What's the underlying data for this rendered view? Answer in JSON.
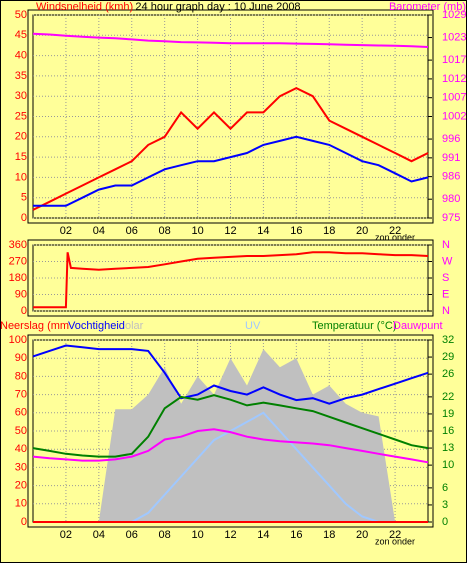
{
  "chart_data": [
    {
      "type": "line",
      "title": "24 hour graph day : 10 June 2008",
      "ylabel": "Windsnelheid (kmh)",
      "y2label": "Barometer (mb)",
      "ycolor": "#ff0000",
      "y2color": "#ff00ff",
      "annotation": "zon onder",
      "x": [
        0,
        1,
        2,
        3,
        4,
        5,
        6,
        7,
        8,
        9,
        10,
        11,
        12,
        13,
        14,
        15,
        16,
        17,
        18,
        19,
        20,
        21,
        22,
        23,
        24
      ],
      "xlim": [
        0,
        24
      ],
      "xticks": [
        {
          "value": 2,
          "label": "02"
        },
        {
          "value": 4,
          "label": "04"
        },
        {
          "value": 6,
          "label": "06"
        },
        {
          "value": 8,
          "label": "08"
        },
        {
          "value": 10,
          "label": "10"
        },
        {
          "value": 12,
          "label": "12"
        },
        {
          "value": 14,
          "label": "14"
        },
        {
          "value": 16,
          "label": "16"
        },
        {
          "value": 18,
          "label": "18"
        },
        {
          "value": 20,
          "label": "20"
        },
        {
          "value": 22,
          "label": "22"
        }
      ],
      "ylim": [
        0,
        50
      ],
      "yticks": [
        0,
        5,
        10,
        15,
        20,
        25,
        30,
        35,
        40,
        45,
        50
      ],
      "y2lim": [
        975,
        1029
      ],
      "y2ticks": [
        975,
        980,
        986,
        991,
        996,
        1002,
        1007,
        1012,
        1017,
        1023,
        1029
      ],
      "grid": true,
      "series": [
        {
          "color": "#ff0000",
          "values": [
            2,
            4,
            6,
            8,
            10,
            12,
            14,
            18,
            20,
            26,
            22,
            26,
            22,
            26,
            26,
            30,
            32,
            30,
            24,
            22,
            20,
            18,
            16,
            14,
            16
          ]
        },
        {
          "color": "#0000ff",
          "values": [
            3,
            3,
            3,
            5,
            7,
            8,
            8,
            10,
            12,
            13,
            14,
            14,
            15,
            16,
            18,
            19,
            20,
            19,
            18,
            16,
            14,
            13,
            11,
            9,
            10
          ]
        },
        {
          "color": "#ff00ff",
          "axis": "y2",
          "values": [
            1024,
            1023.8,
            1023.5,
            1023.2,
            1023,
            1022.8,
            1022.5,
            1022.2,
            1022,
            1021.8,
            1021.7,
            1021.6,
            1021.5,
            1021.5,
            1021.5,
            1021.5,
            1021.4,
            1021.3,
            1021.2,
            1021.1,
            1021,
            1020.9,
            1020.8,
            1020.7,
            1020.5
          ]
        }
      ]
    },
    {
      "type": "line",
      "ycolor": "#ff0000",
      "y2color": "#ff00ff",
      "x": [
        0,
        1,
        2,
        2.1,
        2.3,
        3,
        4,
        5,
        6,
        7,
        8,
        9,
        10,
        11,
        12,
        13,
        14,
        15,
        16,
        17,
        18,
        19,
        20,
        21,
        22,
        23,
        24
      ],
      "xlim": [
        0,
        24
      ],
      "ylim": [
        0,
        360
      ],
      "yticks": [
        0,
        90,
        180,
        270,
        360
      ],
      "y2lim": [
        0,
        360
      ],
      "y2ticks": [
        {
          "value": 0,
          "label": "N"
        },
        {
          "value": 90,
          "label": "E"
        },
        {
          "value": 180,
          "label": "S"
        },
        {
          "value": 270,
          "label": "W"
        },
        {
          "value": 360,
          "label": "N"
        }
      ],
      "grid": true,
      "series": [
        {
          "color": "#ff0000",
          "values": [
            20,
            20,
            20,
            320,
            235,
            230,
            225,
            230,
            235,
            240,
            255,
            270,
            285,
            290,
            295,
            300,
            300,
            305,
            310,
            320,
            320,
            315,
            315,
            310,
            305,
            305,
            300
          ]
        }
      ]
    },
    {
      "type": "line",
      "ycolor": "#ff0000",
      "y2color": "#008000",
      "annotation": "zon onder",
      "x": [
        0,
        1,
        2,
        3,
        4,
        5,
        6,
        7,
        8,
        9,
        10,
        11,
        12,
        13,
        14,
        15,
        16,
        17,
        18,
        19,
        20,
        21,
        22,
        23,
        24
      ],
      "xlim": [
        0,
        24
      ],
      "xticks": [
        {
          "value": 2,
          "label": "02"
        },
        {
          "value": 4,
          "label": "04"
        },
        {
          "value": 6,
          "label": "06"
        },
        {
          "value": 8,
          "label": "08"
        },
        {
          "value": 10,
          "label": "10"
        },
        {
          "value": 12,
          "label": "12"
        },
        {
          "value": 14,
          "label": "14"
        },
        {
          "value": 16,
          "label": "16"
        },
        {
          "value": 18,
          "label": "18"
        },
        {
          "value": 20,
          "label": "20"
        },
        {
          "value": 22,
          "label": "22"
        }
      ],
      "ylim": [
        0,
        100
      ],
      "yticks": [
        0,
        10,
        20,
        30,
        40,
        50,
        60,
        70,
        80,
        90,
        100
      ],
      "y2lim": [
        0,
        32
      ],
      "y2ticks": [
        0,
        3,
        6,
        10,
        13,
        16,
        19,
        22,
        26,
        29,
        32
      ],
      "grid": true,
      "series": [
        {
          "name": "olar",
          "color": "#c0c0c0",
          "style": "area",
          "values": [
            0,
            0,
            0,
            0,
            0,
            62,
            62,
            70,
            85,
            65,
            80,
            70,
            90,
            75,
            95,
            85,
            90,
            70,
            75,
            65,
            60,
            58,
            0,
            0,
            0
          ]
        },
        {
          "name": "UV",
          "color": "#a0c8ff",
          "values": [
            0,
            0,
            0,
            0,
            0,
            0,
            0,
            5,
            15,
            25,
            35,
            45,
            50,
            55,
            60,
            50,
            40,
            30,
            20,
            10,
            3,
            0,
            0,
            0,
            0
          ]
        },
        {
          "name": "Neerslag (mm",
          "color": "#ff0000",
          "values": [
            0,
            0,
            0,
            0,
            0,
            0,
            0,
            0,
            0,
            0,
            0,
            0,
            0,
            0,
            0,
            0,
            0,
            0,
            0,
            0,
            0,
            0,
            0,
            0,
            0
          ]
        },
        {
          "name": "Vochtigheid",
          "color": "#0000ff",
          "values": [
            91,
            94,
            97,
            96,
            95,
            95,
            95,
            94,
            82,
            68,
            70,
            75,
            72,
            70,
            74,
            70,
            67,
            68,
            65,
            68,
            70,
            73,
            76,
            79,
            82
          ]
        },
        {
          "name": "Temperatuur (°C)",
          "color": "#008000",
          "axis": "y2",
          "values": [
            13,
            12.5,
            12,
            11.7,
            11.5,
            11.5,
            12,
            15,
            20,
            22,
            21.5,
            22.3,
            21.5,
            20.5,
            21,
            20.5,
            20,
            19.5,
            18.5,
            17.5,
            16.5,
            15.5,
            14.5,
            13.5,
            13
          ]
        },
        {
          "name": "Dauwpunt",
          "color": "#ff00ff",
          "axis": "y2",
          "values": [
            11.5,
            11.2,
            11,
            10.8,
            10.8,
            11,
            11.5,
            12.5,
            14.5,
            15,
            16,
            16.3,
            15.8,
            15,
            14.5,
            14.2,
            14,
            13.8,
            13.5,
            13,
            12.5,
            12,
            11.5,
            11,
            10.5
          ]
        }
      ]
    }
  ]
}
